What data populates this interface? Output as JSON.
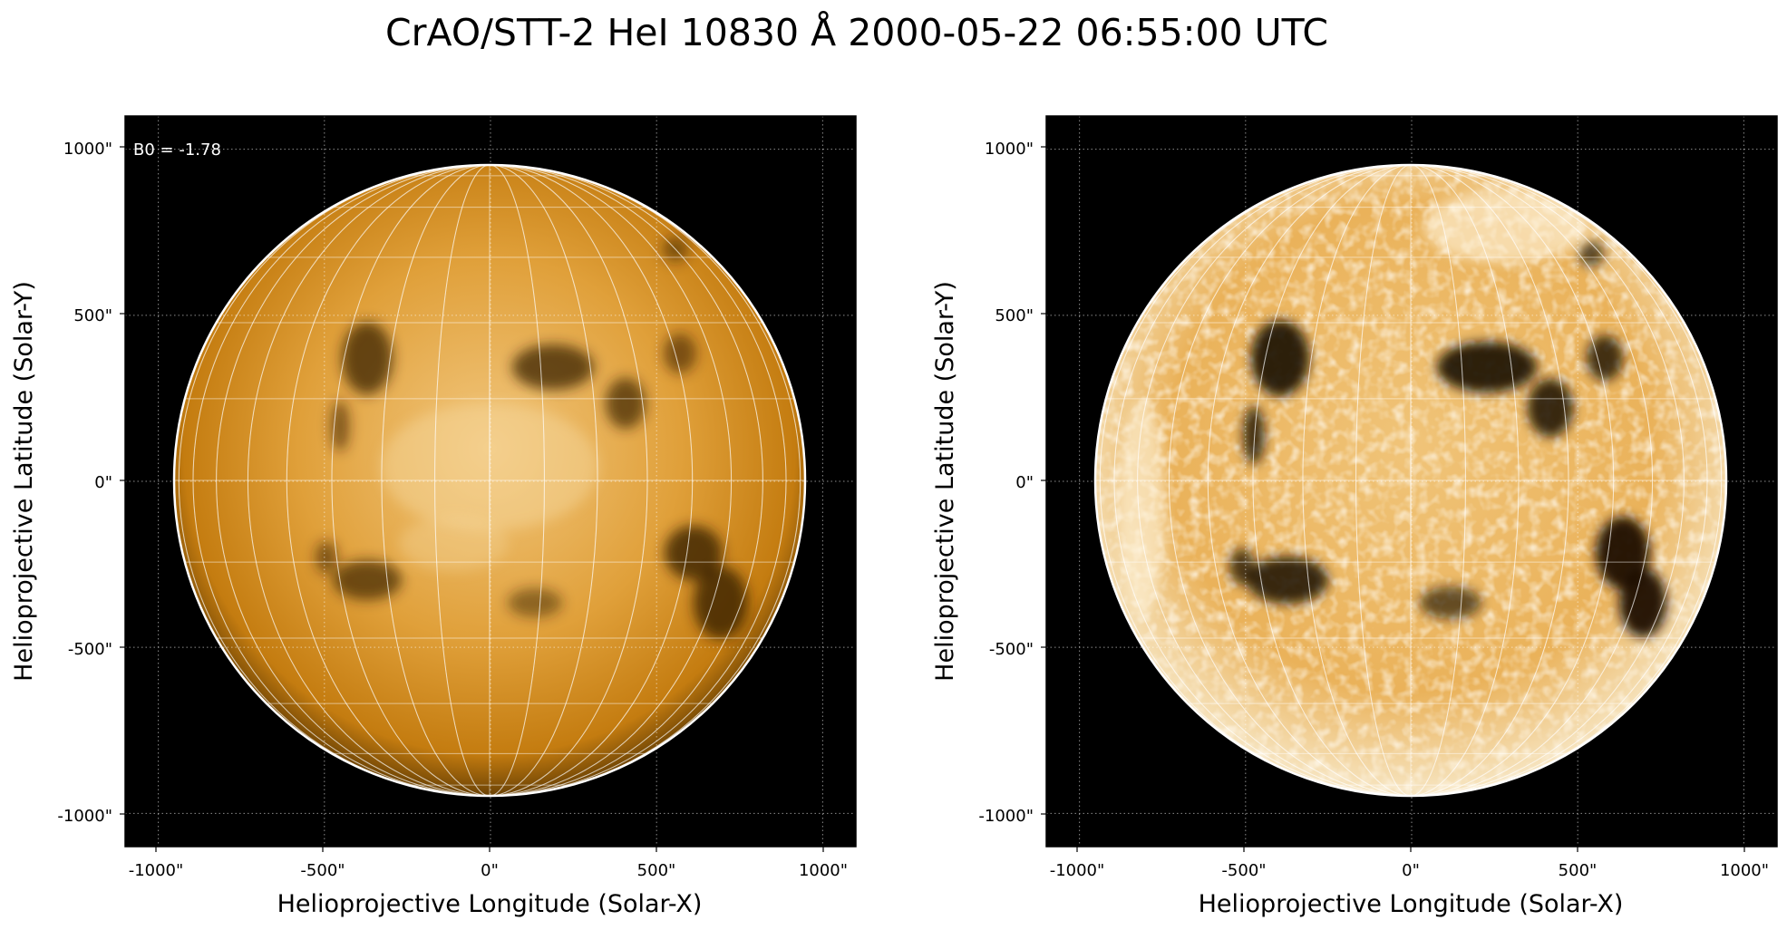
{
  "figure": {
    "title": "CrAO/STT-2 HeI 10830 Å 2000-05-22 06:55:00 UTC"
  },
  "colors": {
    "background": "#000000",
    "limb": "#ffffff",
    "grid": "#ffffff",
    "disk_light": "#f2c77e",
    "disk_mid": "#d38a14",
    "disk_dark": "#3a2200"
  },
  "panels": [
    {
      "id": "left",
      "annotation": "B0 = -1.78",
      "xlabel": "Helioprojective Longitude (Solar-X)",
      "ylabel": "Helioprojective Latitude (Solar-Y)",
      "xticks": [
        "-1000\"",
        "-500\"",
        "0\"",
        "500\"",
        "1000\""
      ],
      "yticks": [
        "1000\"",
        "500\"",
        "0\"",
        "-500\"",
        "-1000\""
      ],
      "xlim": [
        -1100,
        1100
      ],
      "ylim": [
        -1100,
        1100
      ],
      "solar_radius_arcsec": 945,
      "contrast": "normal"
    },
    {
      "id": "right",
      "annotation": "",
      "xlabel": "Helioprojective Longitude (Solar-X)",
      "ylabel": "Helioprojective Latitude (Solar-Y)",
      "xticks": [
        "-1000\"",
        "-500\"",
        "0\"",
        "500\"",
        "1000\""
      ],
      "yticks": [
        "1000\"",
        "500\"",
        "0\"",
        "-500\"",
        "-1000\""
      ],
      "xlim": [
        -1100,
        1100
      ],
      "ylim": [
        -1100,
        1100
      ],
      "solar_radius_arcsec": 945,
      "contrast": "enhanced"
    }
  ]
}
